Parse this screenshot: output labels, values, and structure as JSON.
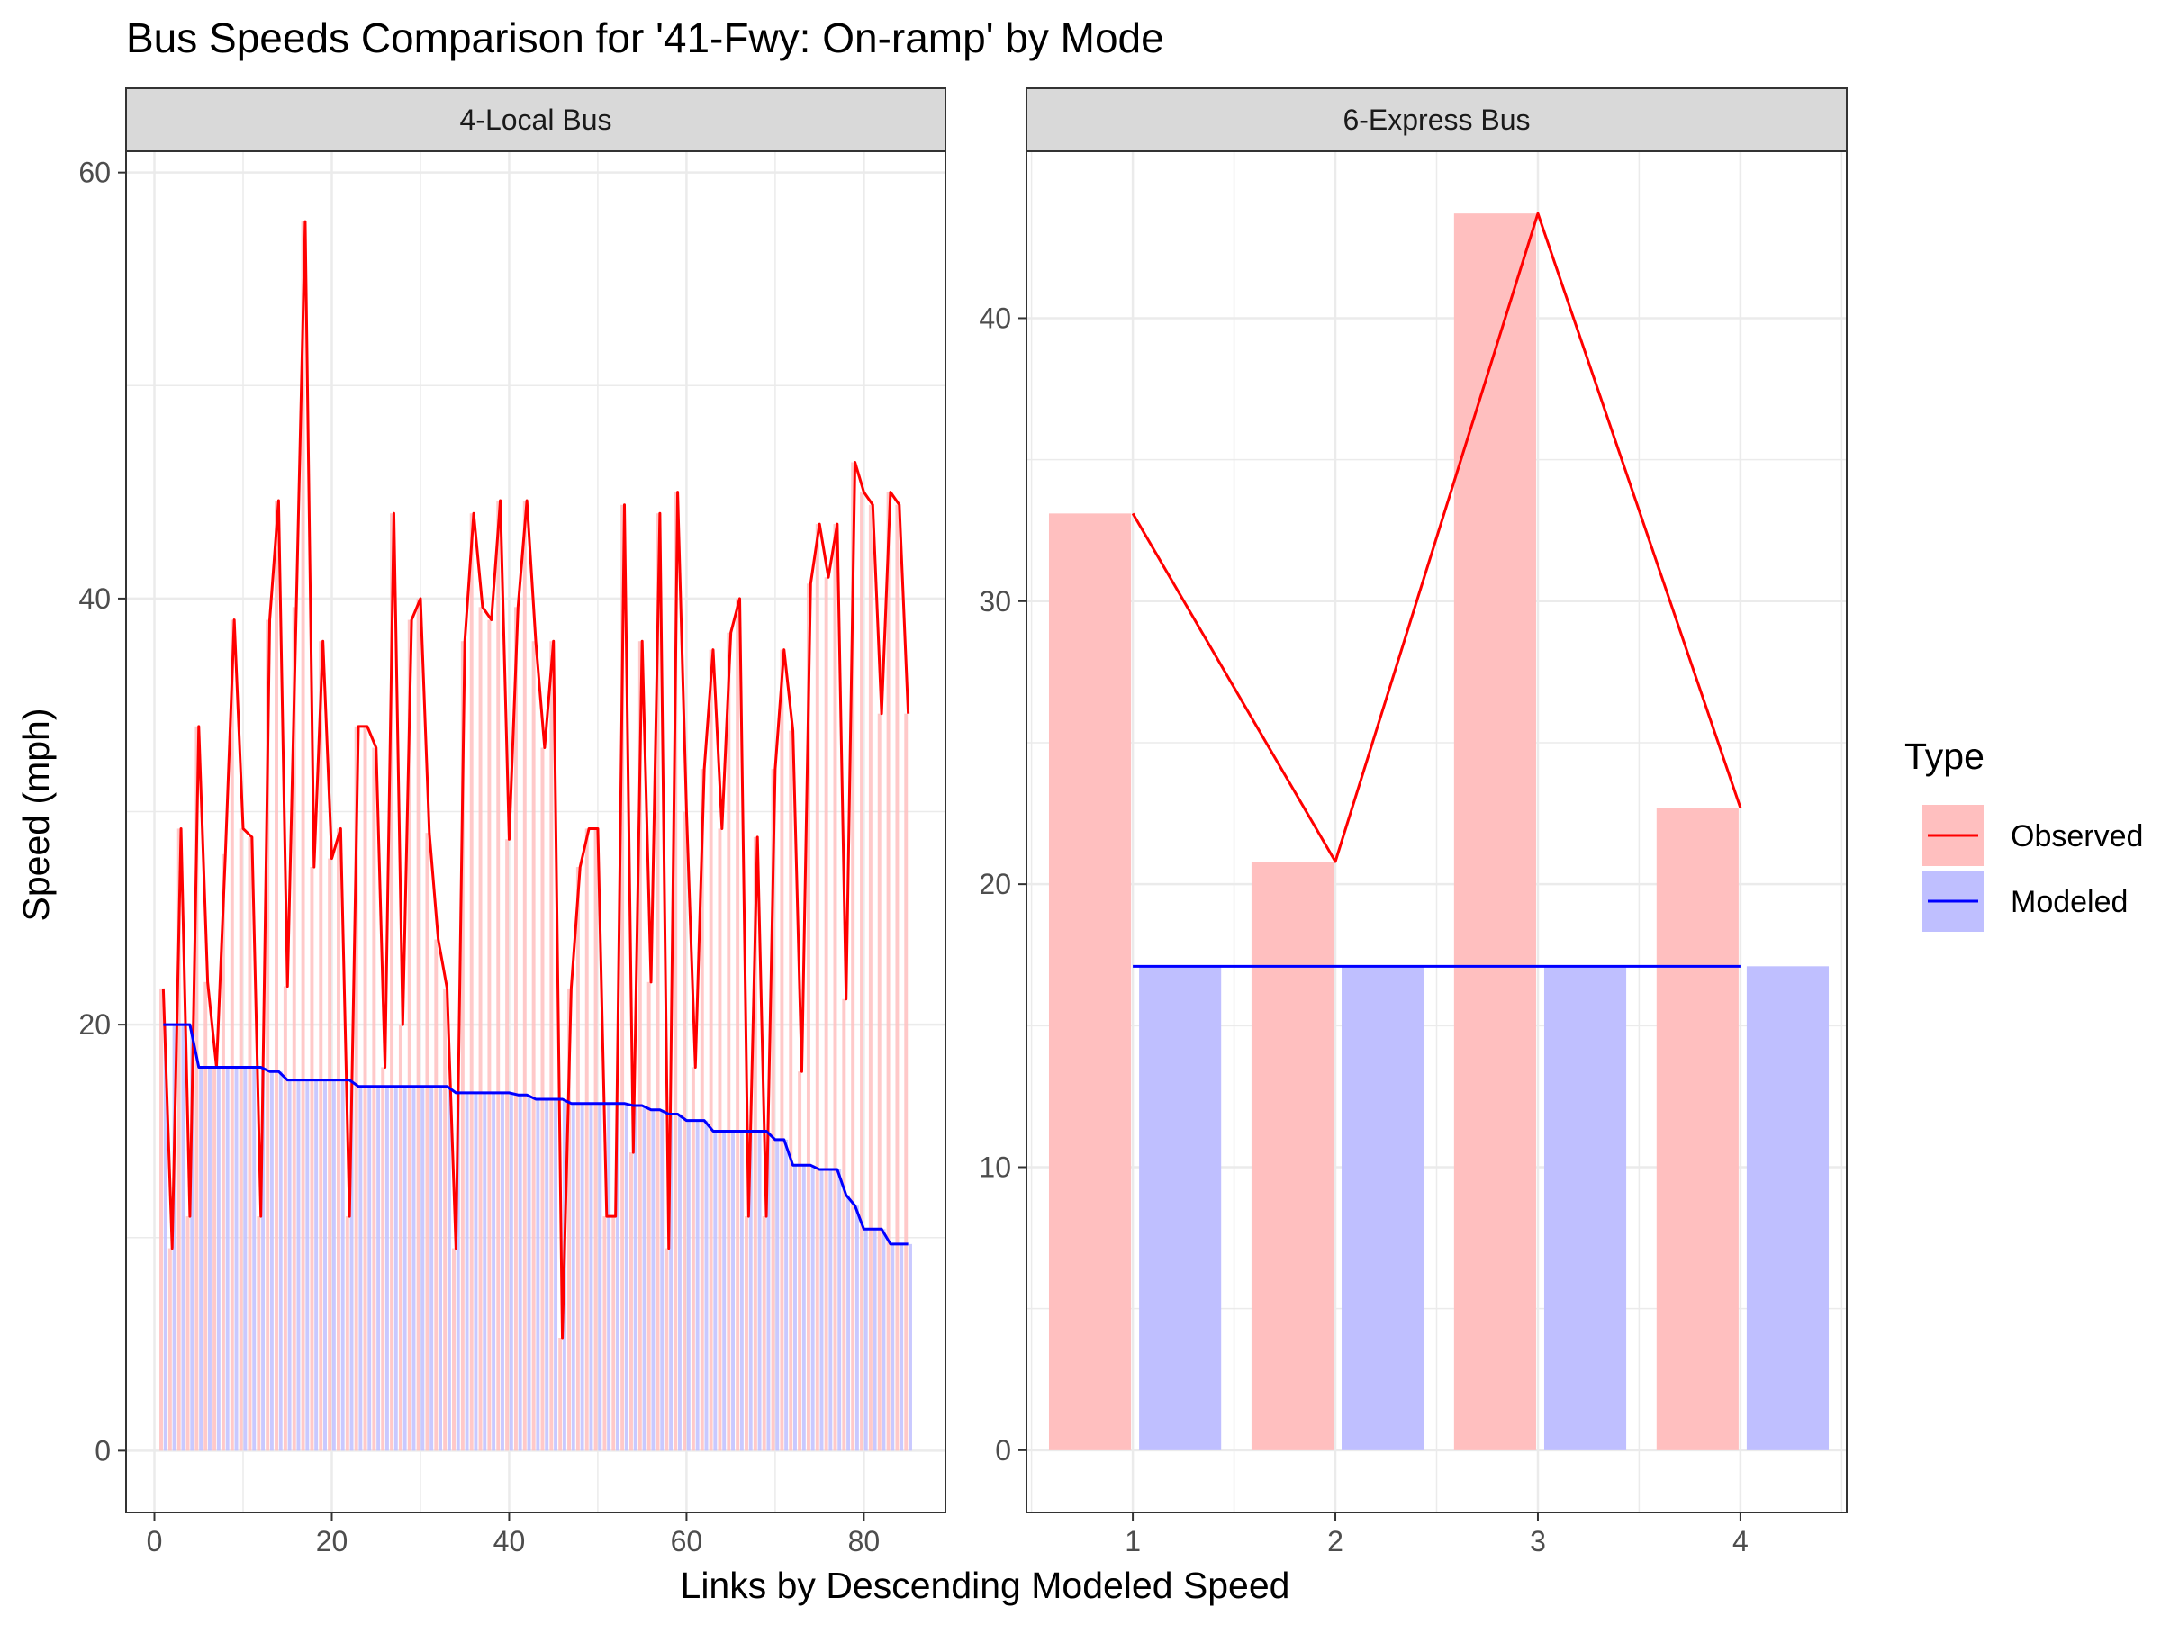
{
  "title": "Bus Speeds Comparison for '41-Fwy: On-ramp' by Mode",
  "xlabel": "Links by Descending Modeled Speed",
  "ylabel": "Speed (mph)",
  "legend": {
    "title": "Type",
    "position": "right",
    "entries": [
      {
        "label": "Observed",
        "line_color": "#ff0000",
        "fill_color": "#ffbfbf"
      },
      {
        "label": "Modeled",
        "line_color": "#0000ff",
        "fill_color": "#bfbfff"
      }
    ]
  },
  "colors": {
    "observed_line": "#ff0000",
    "observed_bar": "#ffbfbf",
    "modeled_line": "#0000ff",
    "modeled_bar": "#bfbfff",
    "strip_bg": "#d9d9d9",
    "grid": "#ebebeb"
  },
  "chart_data": [
    {
      "type": "bar+line",
      "panel": "4-Local Bus",
      "xlim": [
        -3.2,
        89.2
      ],
      "ylim": [
        -2.9,
        61.0
      ],
      "xticks": [
        0,
        20,
        40,
        60,
        80
      ],
      "yticks": [
        0,
        20,
        40,
        60
      ],
      "grid": true,
      "x": [
        1,
        2,
        3,
        4,
        5,
        6,
        7,
        8,
        9,
        10,
        11,
        12,
        13,
        14,
        15,
        16,
        17,
        18,
        19,
        20,
        21,
        22,
        23,
        24,
        25,
        26,
        27,
        28,
        29,
        30,
        31,
        32,
        33,
        34,
        35,
        36,
        37,
        38,
        39,
        40,
        41,
        42,
        43,
        44,
        45,
        46,
        47,
        48,
        49,
        50,
        51,
        52,
        53,
        54,
        55,
        56,
        57,
        58,
        59,
        60,
        61,
        62,
        63,
        64,
        65,
        66,
        67,
        68,
        69,
        70,
        71,
        72,
        73,
        74,
        75,
        76,
        77,
        78,
        79,
        80,
        81,
        82,
        83,
        84,
        85
      ],
      "series": [
        {
          "name": "Observed",
          "values": [
            21.7,
            9.5,
            29.2,
            11.0,
            34.0,
            22.0,
            18.0,
            28.0,
            39.0,
            29.2,
            28.8,
            11.0,
            39.0,
            44.6,
            21.8,
            39.6,
            57.7,
            27.4,
            38.0,
            27.8,
            29.2,
            11.0,
            34.0,
            34.0,
            33.0,
            18.0,
            44.0,
            20.0,
            39.0,
            40.0,
            29.0,
            24.0,
            21.7,
            9.5,
            38.0,
            44.0,
            39.6,
            39.0,
            44.6,
            28.7,
            39.6,
            44.6,
            38.0,
            33.0,
            38.0,
            5.3,
            21.7,
            27.4,
            29.2,
            29.2,
            11.0,
            11.0,
            44.4,
            14.0,
            38.0,
            22.0,
            44.0,
            9.5,
            45.0,
            30.0,
            18.0,
            32.0,
            37.6,
            29.2,
            38.4,
            40.0,
            11.0,
            28.8,
            11.0,
            32.0,
            37.6,
            33.8,
            17.8,
            40.7,
            43.5,
            41.0,
            43.5,
            21.2,
            46.4,
            45.0,
            44.4,
            34.6,
            45.0,
            44.4,
            34.6
          ]
        },
        {
          "name": "Modeled",
          "values": [
            20.0,
            20.0,
            20.0,
            20.0,
            18.0,
            18.0,
            18.0,
            18.0,
            18.0,
            18.0,
            18.0,
            18.0,
            17.8,
            17.8,
            17.4,
            17.4,
            17.4,
            17.4,
            17.4,
            17.4,
            17.4,
            17.4,
            17.1,
            17.1,
            17.1,
            17.1,
            17.1,
            17.1,
            17.1,
            17.1,
            17.1,
            17.1,
            17.1,
            16.8,
            16.8,
            16.8,
            16.8,
            16.8,
            16.8,
            16.8,
            16.7,
            16.7,
            16.5,
            16.5,
            16.5,
            16.5,
            16.3,
            16.3,
            16.3,
            16.3,
            16.3,
            16.3,
            16.3,
            16.2,
            16.2,
            16.0,
            16.0,
            15.8,
            15.8,
            15.5,
            15.5,
            15.5,
            15.0,
            15.0,
            15.0,
            15.0,
            15.0,
            15.0,
            15.0,
            14.6,
            14.6,
            13.4,
            13.4,
            13.4,
            13.2,
            13.2,
            13.2,
            12.0,
            11.5,
            10.4,
            10.4,
            10.4,
            9.7,
            9.7,
            9.7
          ]
        }
      ]
    },
    {
      "type": "bar+line",
      "panel": "6-Express Bus",
      "xlim": [
        0.475,
        4.525
      ],
      "ylim": [
        -2.2,
        45.9
      ],
      "xticks": [
        1,
        2,
        3,
        4
      ],
      "yticks": [
        0,
        10,
        20,
        30,
        40
      ],
      "grid": true,
      "x": [
        1,
        2,
        3,
        4
      ],
      "series": [
        {
          "name": "Observed",
          "values": [
            33.1,
            20.8,
            43.7,
            22.7
          ]
        },
        {
          "name": "Modeled",
          "values": [
            17.1,
            17.1,
            17.1,
            17.1
          ]
        }
      ]
    }
  ]
}
